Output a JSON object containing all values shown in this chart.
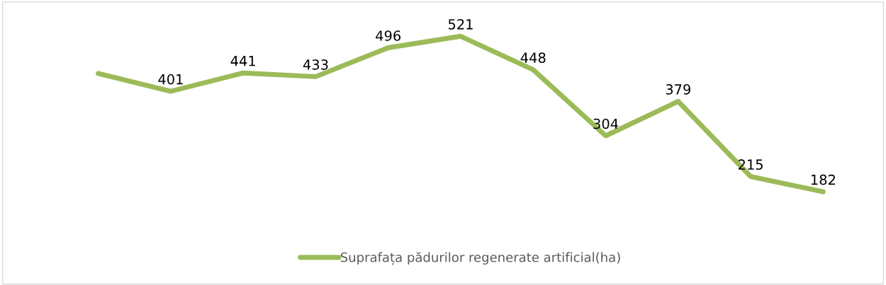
{
  "chart_data": {
    "type": "line",
    "categories": [
      null,
      null,
      null,
      null,
      null,
      null,
      null,
      null,
      null,
      null,
      null
    ],
    "series": [
      {
        "name": "Suprafața pădurilor regenerate artificial(ha)",
        "color": "#9bbb59",
        "values": [
          440,
          401,
          441,
          433,
          496,
          521,
          448,
          304,
          379,
          215,
          182
        ],
        "value_labels": [
          null,
          "401",
          "441",
          "433",
          "496",
          "521",
          "448",
          "304",
          "379",
          "215",
          "182"
        ]
      }
    ],
    "tick_labels": false,
    "legend": "bottom",
    "marker": "none",
    "line_style": "solid"
  }
}
